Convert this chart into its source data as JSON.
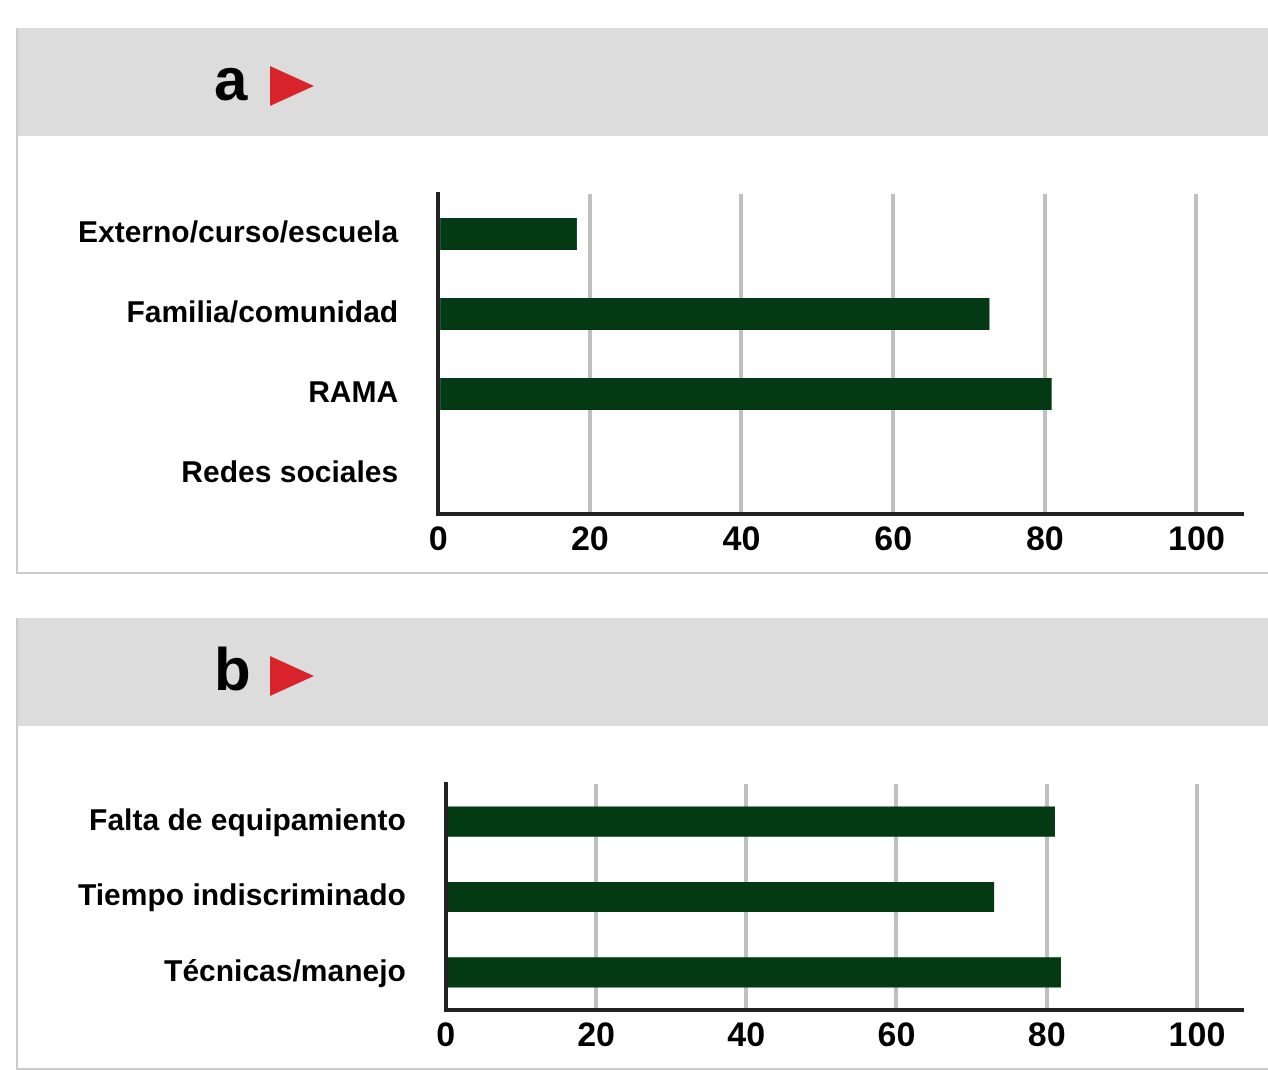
{
  "chart_data": [
    {
      "type": "bar",
      "title": "a",
      "orientation": "horizontal",
      "categories": [
        "Externo/curso/escuela",
        "Familia/comunidad",
        "RAMA",
        "Redes sociales"
      ],
      "values": [
        18.3,
        72.7,
        80.9,
        0
      ],
      "color": "#033a14",
      "xlim": [
        0,
        106
      ],
      "xticks": [
        0,
        20,
        40,
        60,
        80,
        100
      ],
      "grid": "x"
    },
    {
      "type": "bar",
      "title": "b",
      "orientation": "horizontal",
      "categories": [
        "Falta de equipamiento",
        "Tiempo indiscriminado",
        "Técnicas/manejo"
      ],
      "values": [
        81.1,
        73.0,
        81.9
      ],
      "color": "#033a14",
      "xlim": [
        0,
        106
      ],
      "xticks": [
        0,
        20,
        40,
        60,
        80,
        100
      ],
      "grid": "x"
    }
  ]
}
